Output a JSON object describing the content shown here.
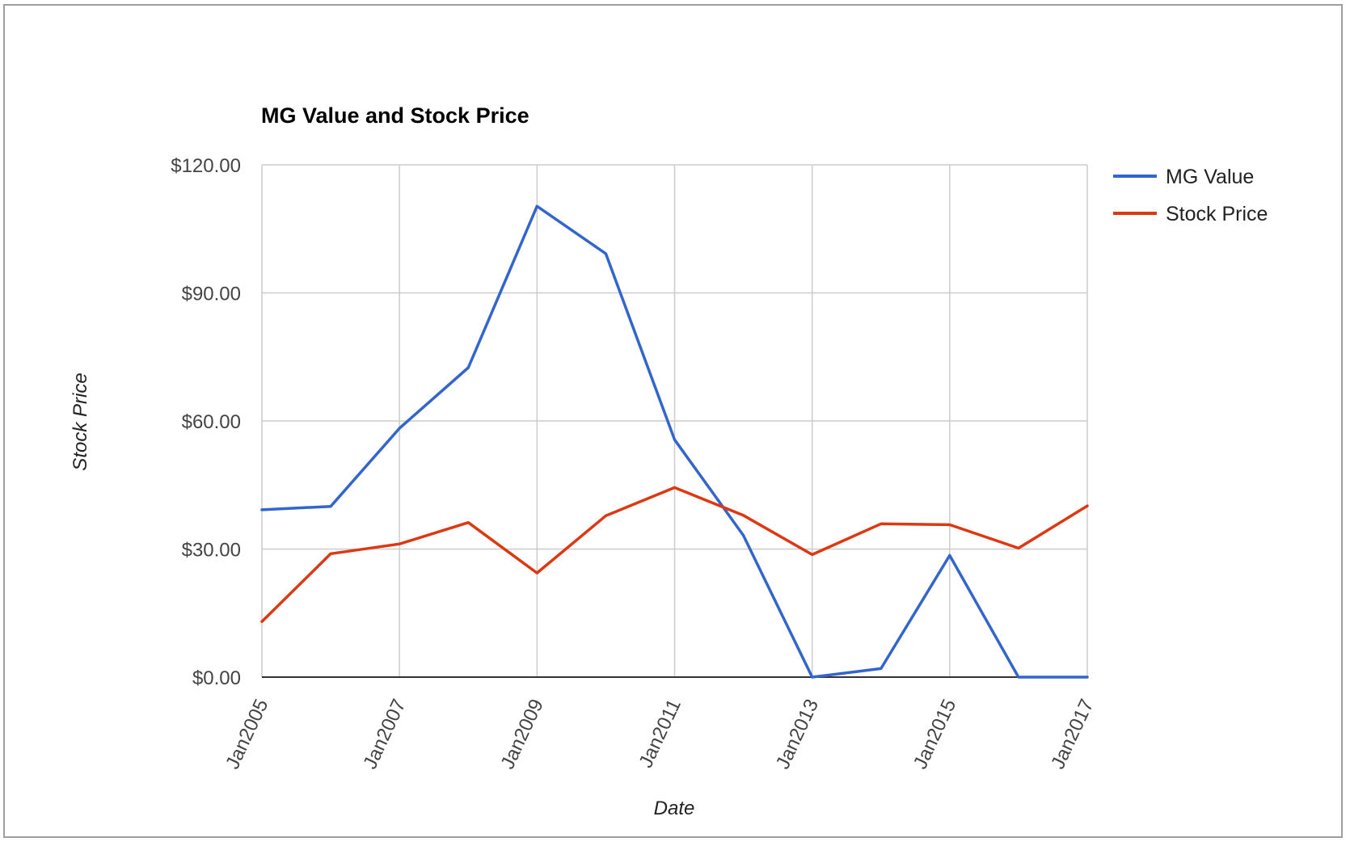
{
  "chart_data": {
    "type": "line",
    "title": "MG Value and Stock Price",
    "xlabel": "Date",
    "ylabel": "Stock Price",
    "x_years": [
      2005,
      2006,
      2007,
      2008,
      2009,
      2010,
      2011,
      2012,
      2013,
      2014,
      2015,
      2016,
      2017
    ],
    "x_tick_labels": [
      "Jan2005",
      "Jan2007",
      "Jan2009",
      "Jan2011",
      "Jan2013",
      "Jan2015",
      "Jan2017"
    ],
    "x_tick_years": [
      2005,
      2007,
      2009,
      2011,
      2013,
      2015,
      2017
    ],
    "xlim": [
      2005,
      2017
    ],
    "ylim": [
      0,
      120
    ],
    "y_ticks": [
      0,
      30,
      60,
      90,
      120
    ],
    "y_tick_labels": [
      "$0.00",
      "$30.00",
      "$60.00",
      "$90.00",
      "$120.00"
    ],
    "grid": true,
    "legend_position": "right",
    "series": [
      {
        "name": "MG Value",
        "color": "#3366cc",
        "values": [
          39.2,
          40.0,
          58.3,
          72.5,
          110.3,
          99.2,
          55.6,
          33.2,
          0.0,
          2.0,
          28.5,
          0.0,
          0.0
        ]
      },
      {
        "name": "Stock Price",
        "color": "#dc3912",
        "values": [
          13.0,
          28.9,
          31.2,
          36.2,
          24.4,
          37.8,
          44.4,
          37.9,
          28.7,
          35.9,
          35.7,
          30.2,
          40.1
        ]
      }
    ]
  }
}
